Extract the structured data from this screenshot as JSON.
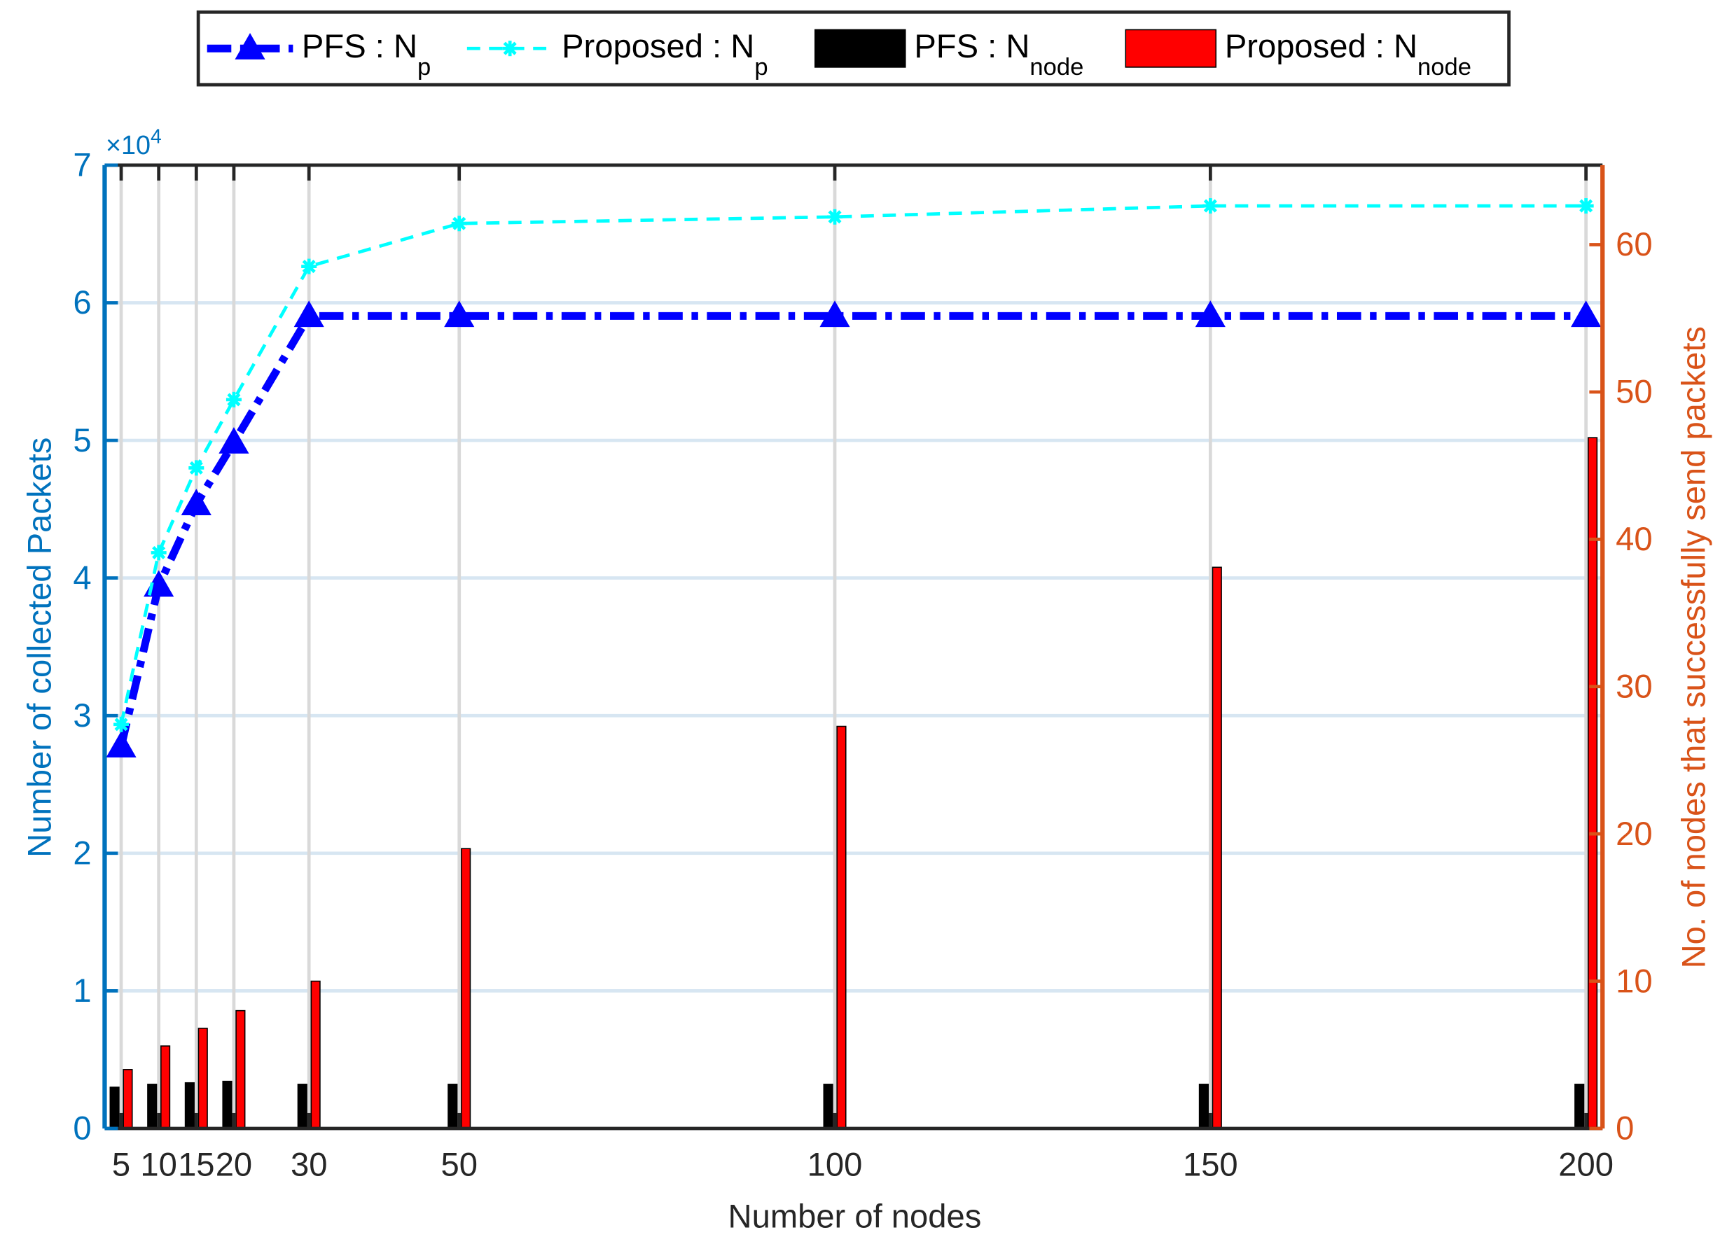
{
  "chart_data": {
    "type": "bar-line",
    "x": [
      5,
      10,
      15,
      20,
      30,
      50,
      100,
      150,
      200
    ],
    "xlim": [
      2.8,
      202.2
    ],
    "xticks": [
      5,
      10,
      15,
      20,
      30,
      50,
      100,
      150,
      200
    ],
    "xlabel": "Number of nodes",
    "ylabel": "Number of collected Packets",
    "y2label": "No. of nodes that successfully send packets",
    "y_exponent": {
      "base": "×10",
      "power": "4"
    },
    "ylim": [
      0,
      70000
    ],
    "yticks": [
      {
        "value": 0,
        "label": "0"
      },
      {
        "value": 10000,
        "label": "1"
      },
      {
        "value": 20000,
        "label": "2"
      },
      {
        "value": 30000,
        "label": "3"
      },
      {
        "value": 40000,
        "label": "4"
      },
      {
        "value": 50000,
        "label": "5"
      },
      {
        "value": 60000,
        "label": "6"
      },
      {
        "value": 70000,
        "label": "7"
      }
    ],
    "y2lim": [
      0,
      65.4
    ],
    "y2ticks": [
      0,
      10,
      20,
      30,
      40,
      50,
      60
    ],
    "grid": true,
    "y_color": "#0072bd",
    "y2_color": "#d95319",
    "legend": "top-outside",
    "series": [
      {
        "name": "PFS : N",
        "name_sub": "p",
        "kind": "line",
        "marker": "triangle",
        "dash": "dash-dot",
        "color": "#0000ff",
        "values": [
          27760,
          39440,
          45360,
          49840,
          59040,
          59040,
          59040,
          59040,
          59040
        ]
      },
      {
        "name": "Proposed : N",
        "name_sub": "p",
        "kind": "line",
        "marker": "asterisk",
        "dash": "dashed",
        "color": "#00ffff",
        "values": [
          29360,
          41840,
          48000,
          52960,
          62640,
          65760,
          66240,
          67040,
          67040
        ]
      },
      {
        "name": "PFS : N",
        "name_sub": "node",
        "kind": "bar",
        "axis": "y2",
        "color": "#000000",
        "values": [
          2.8,
          3,
          3.1,
          3.2,
          3,
          3,
          3,
          3,
          3
        ]
      },
      {
        "name": "Proposed : N",
        "name_sub": "node",
        "kind": "bar",
        "axis": "y2",
        "color": "#ff0000",
        "values": [
          4,
          5.6,
          6.8,
          8,
          10,
          19,
          27.3,
          38.1,
          46.9
        ]
      }
    ]
  }
}
